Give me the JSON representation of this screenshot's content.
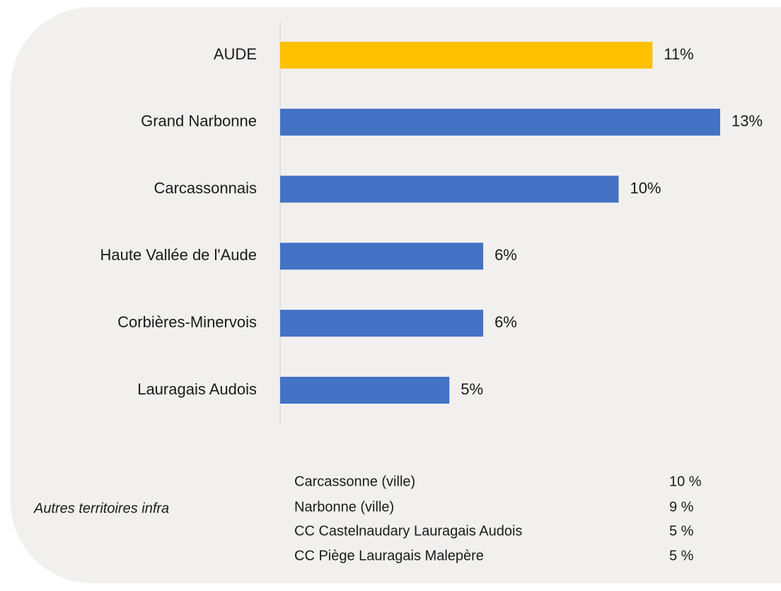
{
  "chart_data": {
    "type": "bar",
    "orientation": "horizontal",
    "categories": [
      "AUDE",
      "Grand Narbonne",
      "Carcassonnais",
      "Haute Vallée de l'Aude",
      "Corbières-Minervois",
      "Lauragais Audois"
    ],
    "values": [
      11,
      13,
      10,
      6,
      6,
      5
    ],
    "value_labels": [
      "11%",
      "13%",
      "10%",
      "6%",
      "6%",
      "5%"
    ],
    "colors": [
      "#ffc000",
      "#4472c4",
      "#4472c4",
      "#4472c4",
      "#4472c4",
      "#4472c4"
    ],
    "xlim": [
      0,
      13
    ]
  },
  "table": {
    "label": "Autres territoires infra",
    "rows": [
      [
        "Carcassonne (ville)",
        "10 %"
      ],
      [
        "Narbonne (ville)",
        "9 %"
      ],
      [
        "CC Castelnaudary Lauragais Audois",
        "5 %"
      ],
      [
        "CC Piège Lauragais Malepère",
        "5 %"
      ]
    ]
  }
}
